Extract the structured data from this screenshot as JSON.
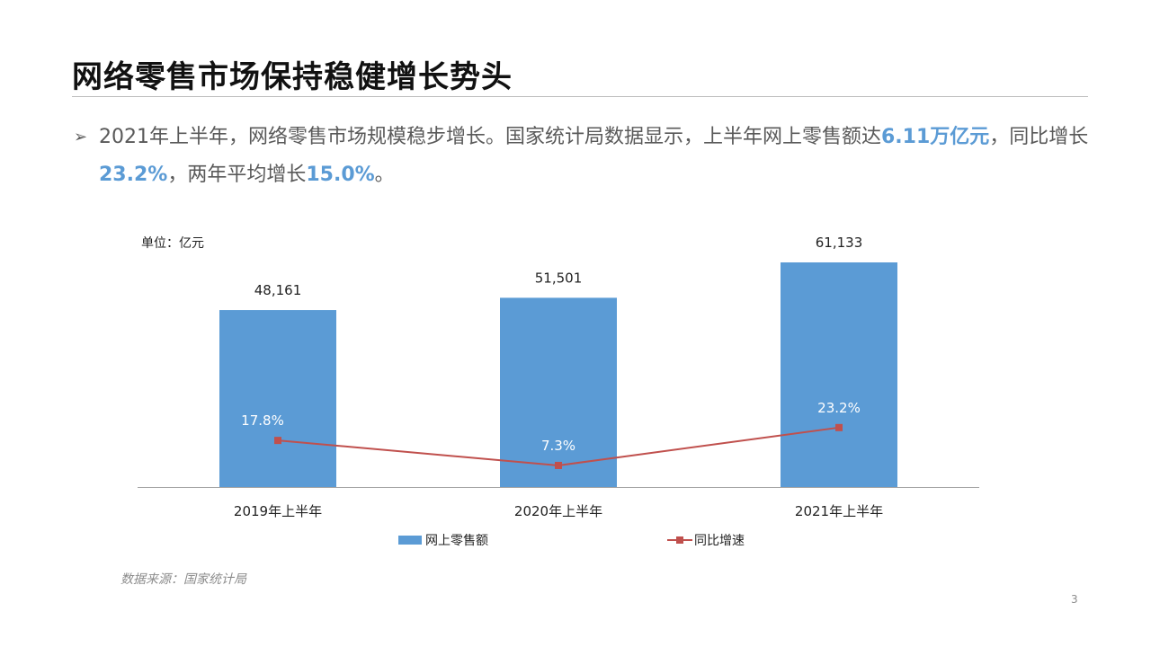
{
  "slide": {
    "title": "网络零售市场保持稳健增长势头",
    "bullet": {
      "marker": "➢",
      "text_1": "2021年上半年，网络零售市场规模稳步增长。国家统计局数据显示，上半年网上零售额达",
      "highlight_1": "6.11万亿元",
      "text_2": "，同比增长",
      "highlight_2": "23.2%",
      "text_3": "，两年平均增长",
      "highlight_3": "15.0%",
      "text_4": "。"
    },
    "source": "数据来源：国家统计局",
    "page_number": "3"
  },
  "colors": {
    "bar": "#5b9bd5",
    "line": "#c0504d",
    "highlight": "#5b9bd5"
  },
  "chart_data": {
    "type": "bar",
    "unit_label": "单位：亿元",
    "categories": [
      "2019年上半年",
      "2020年上半年",
      "2021年上半年"
    ],
    "series": [
      {
        "name": "网上零售额",
        "type": "bar",
        "values": [
          48161,
          51501,
          61133
        ],
        "labels": [
          "48,161",
          "51,501",
          "61,133"
        ]
      },
      {
        "name": "同比增速",
        "type": "line",
        "values": [
          17.8,
          7.3,
          23.2
        ],
        "labels": [
          "17.8%",
          "7.3%",
          "23.2%"
        ]
      }
    ],
    "legend_position": "bottom",
    "grid": false
  }
}
